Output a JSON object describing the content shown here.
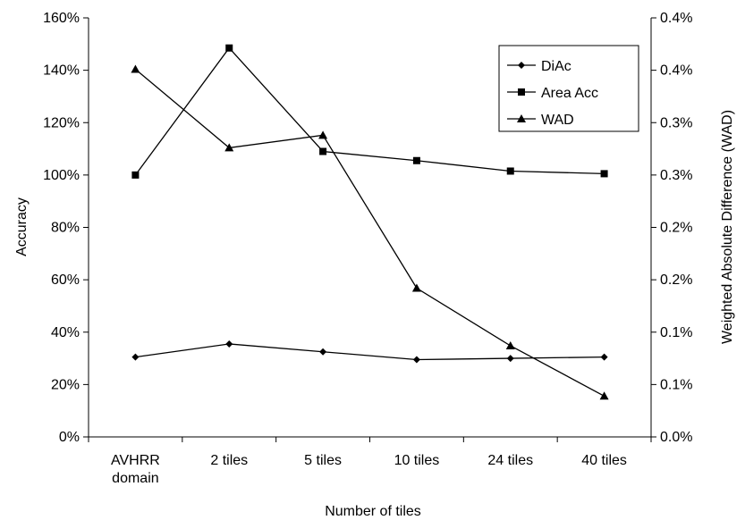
{
  "chart_data": {
    "type": "line",
    "xlabel": "Number of tiles",
    "ylabel": "Accuracy",
    "y2label": "Weighted Absolute Difference (WAD)",
    "categories": [
      [
        "AVHRR",
        "domain"
      ],
      [
        "2 tiles"
      ],
      [
        "5 tiles"
      ],
      [
        "10 tiles"
      ],
      [
        "24 tiles"
      ],
      [
        "40 tiles"
      ]
    ],
    "ylim": [
      0,
      160
    ],
    "yticks": [
      0,
      20,
      40,
      60,
      80,
      100,
      120,
      140,
      160
    ],
    "ytick_labels": [
      "0%",
      "20%",
      "40%",
      "60%",
      "80%",
      "100%",
      "120%",
      "140%",
      "160%"
    ],
    "y2lim": [
      0,
      0.4
    ],
    "y2ticks": [
      0,
      0.05,
      0.1,
      0.15,
      0.2,
      0.25,
      0.3,
      0.35,
      0.4
    ],
    "y2tick_labels": [
      "0.0%",
      "0.1%",
      "0.1%",
      "0.2%",
      "0.2%",
      "0.3%",
      "0.3%",
      "0.4%",
      "0.4%"
    ],
    "grid": false,
    "legend_position": "top-right",
    "series": [
      {
        "name": "DiAc",
        "marker": "diamond",
        "axis": "left",
        "values": [
          30.5,
          35.5,
          32.5,
          29.5,
          30,
          30.5
        ]
      },
      {
        "name": "Area Acc",
        "marker": "square",
        "axis": "left",
        "values": [
          100,
          148.5,
          109,
          105.5,
          101.5,
          100.5
        ]
      },
      {
        "name": "WAD",
        "marker": "triangle",
        "axis": "right",
        "values": [
          0.351,
          0.276,
          0.288,
          0.142,
          0.087,
          0.039
        ]
      }
    ]
  }
}
